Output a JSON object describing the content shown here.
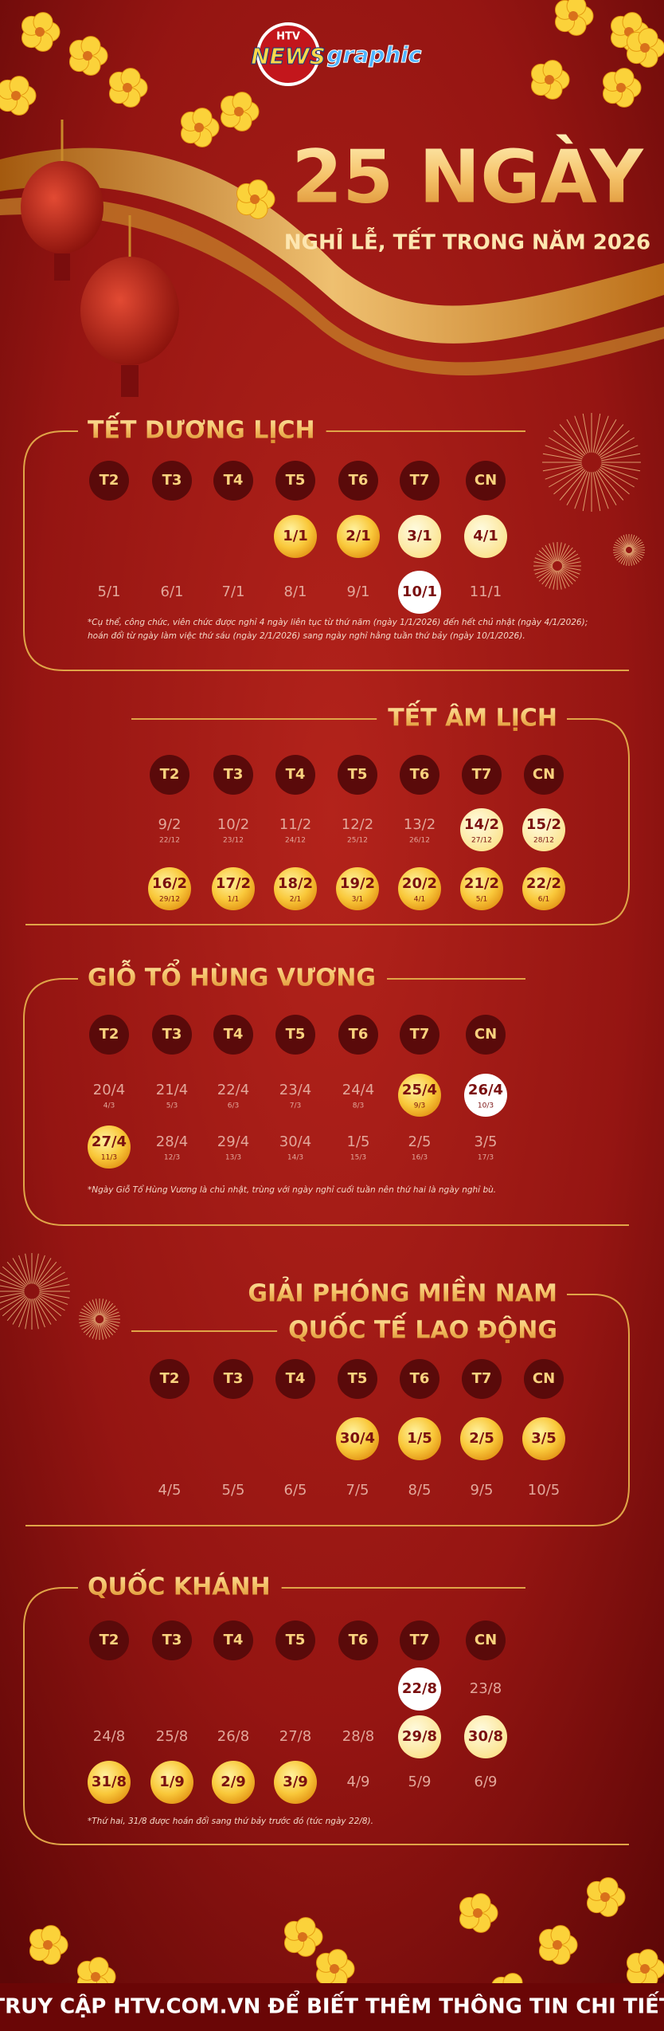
{
  "header": {
    "logo": {
      "brand": "HTV",
      "name": "NEWS",
      "suffix": "graphic"
    },
    "title": "25 NGÀY",
    "subtitle": "NGHỈ LỄ, TẾT TRONG NĂM 2026"
  },
  "sections": [
    {
      "align": "left",
      "title_lines": [
        "TẾT DƯƠNG LỊCH"
      ],
      "weekdays": [
        "T2",
        "T3",
        "T4",
        "T5",
        "T6",
        "T7",
        "CN"
      ],
      "rows": [
        [
          null,
          null,
          null,
          {
            "date": "1/1",
            "style": "gold"
          },
          {
            "date": "2/1",
            "style": "gold"
          },
          {
            "date": "3/1",
            "style": "pale"
          },
          {
            "date": "4/1",
            "style": "pale"
          }
        ],
        [
          {
            "date": "5/1",
            "style": "normal"
          },
          {
            "date": "6/1",
            "style": "normal"
          },
          {
            "date": "7/1",
            "style": "normal"
          },
          {
            "date": "8/1",
            "style": "normal"
          },
          {
            "date": "9/1",
            "style": "normal"
          },
          {
            "date": "10/1",
            "style": "white"
          },
          {
            "date": "11/1",
            "style": "normal"
          }
        ]
      ],
      "note_lines": [
        "*Cụ thể, công chức, viên chức được nghỉ 4 ngày liên tục từ thứ năm (ngày 1/1/2026) đến hết chủ nhật (ngày 4/1/2026);",
        "hoán đổi từ ngày làm việc thứ sáu (ngày 2/1/2026) sang ngày nghỉ hằng tuần thứ bảy (ngày 10/1/2026)."
      ]
    },
    {
      "align": "right",
      "title_lines": [
        "TẾT ÂM LỊCH"
      ],
      "weekdays": [
        "T2",
        "T3",
        "T4",
        "T5",
        "T6",
        "T7",
        "CN"
      ],
      "rows": [
        [
          {
            "date": "9/2",
            "lunar": "22/12",
            "style": "normal"
          },
          {
            "date": "10/2",
            "lunar": "23/12",
            "style": "normal"
          },
          {
            "date": "11/2",
            "lunar": "24/12",
            "style": "normal"
          },
          {
            "date": "12/2",
            "lunar": "25/12",
            "style": "normal"
          },
          {
            "date": "13/2",
            "lunar": "26/12",
            "style": "normal"
          },
          {
            "date": "14/2",
            "lunar": "27/12",
            "style": "pale"
          },
          {
            "date": "15/2",
            "lunar": "28/12",
            "style": "pale"
          }
        ],
        [
          {
            "date": "16/2",
            "lunar": "29/12",
            "style": "gold"
          },
          {
            "date": "17/2",
            "lunar": "1/1",
            "style": "gold"
          },
          {
            "date": "18/2",
            "lunar": "2/1",
            "style": "gold"
          },
          {
            "date": "19/2",
            "lunar": "3/1",
            "style": "gold"
          },
          {
            "date": "20/2",
            "lunar": "4/1",
            "style": "gold"
          },
          {
            "date": "21/2",
            "lunar": "5/1",
            "style": "gold"
          },
          {
            "date": "22/2",
            "lunar": "6/1",
            "style": "gold"
          }
        ]
      ]
    },
    {
      "align": "left",
      "title_lines": [
        "GIỖ TỔ HÙNG VƯƠNG"
      ],
      "weekdays": [
        "T2",
        "T3",
        "T4",
        "T5",
        "T6",
        "T7",
        "CN"
      ],
      "rows": [
        [
          {
            "date": "20/4",
            "lunar": "4/3",
            "style": "normal"
          },
          {
            "date": "21/4",
            "lunar": "5/3",
            "style": "normal"
          },
          {
            "date": "22/4",
            "lunar": "6/3",
            "style": "normal"
          },
          {
            "date": "23/4",
            "lunar": "7/3",
            "style": "normal"
          },
          {
            "date": "24/4",
            "lunar": "8/3",
            "style": "normal"
          },
          {
            "date": "25/4",
            "lunar": "9/3",
            "style": "gold"
          },
          {
            "date": "26/4",
            "lunar": "10/3",
            "style": "white"
          }
        ],
        [
          {
            "date": "27/4",
            "lunar": "11/3",
            "style": "gold"
          },
          {
            "date": "28/4",
            "lunar": "12/3",
            "style": "normal"
          },
          {
            "date": "29/4",
            "lunar": "13/3",
            "style": "normal"
          },
          {
            "date": "30/4",
            "lunar": "14/3",
            "style": "normal"
          },
          {
            "date": "1/5",
            "lunar": "15/3",
            "style": "normal"
          },
          {
            "date": "2/5",
            "lunar": "16/3",
            "style": "normal"
          },
          {
            "date": "3/5",
            "lunar": "17/3",
            "style": "normal"
          }
        ]
      ],
      "note_lines": [
        "*Ngày Giỗ Tổ Hùng Vương là chủ nhật, trùng với ngày nghỉ cuối tuần nên thứ hai là ngày nghỉ bù."
      ]
    },
    {
      "align": "right",
      "title_lines": [
        "GIẢI PHÓNG MIỀN NAM",
        "QUỐC TẾ LAO ĐỘNG"
      ],
      "weekdays": [
        "T2",
        "T3",
        "T4",
        "T5",
        "T6",
        "T7",
        "CN"
      ],
      "rows": [
        [
          null,
          null,
          null,
          {
            "date": "30/4",
            "style": "gold"
          },
          {
            "date": "1/5",
            "style": "gold"
          },
          {
            "date": "2/5",
            "style": "gold"
          },
          {
            "date": "3/5",
            "style": "gold"
          }
        ],
        [
          {
            "date": "4/5",
            "style": "normal"
          },
          {
            "date": "5/5",
            "style": "normal"
          },
          {
            "date": "6/5",
            "style": "normal"
          },
          {
            "date": "7/5",
            "style": "normal"
          },
          {
            "date": "8/5",
            "style": "normal"
          },
          {
            "date": "9/5",
            "style": "normal"
          },
          {
            "date": "10/5",
            "style": "normal"
          }
        ]
      ]
    },
    {
      "align": "left",
      "title_lines": [
        "QUỐC KHÁNH"
      ],
      "weekdays": [
        "T2",
        "T3",
        "T4",
        "T5",
        "T6",
        "T7",
        "CN"
      ],
      "rows": [
        [
          null,
          null,
          null,
          null,
          null,
          {
            "date": "22/8",
            "style": "white"
          },
          {
            "date": "23/8",
            "style": "normal"
          }
        ],
        [
          {
            "date": "24/8",
            "style": "normal"
          },
          {
            "date": "25/8",
            "style": "normal"
          },
          {
            "date": "26/8",
            "style": "normal"
          },
          {
            "date": "27/8",
            "style": "normal"
          },
          {
            "date": "28/8",
            "style": "normal"
          },
          {
            "date": "29/8",
            "style": "pale"
          },
          {
            "date": "30/8",
            "style": "pale"
          }
        ],
        [
          {
            "date": "31/8",
            "style": "gold"
          },
          {
            "date": "1/9",
            "style": "gold"
          },
          {
            "date": "2/9",
            "style": "gold"
          },
          {
            "date": "3/9",
            "style": "gold"
          },
          {
            "date": "4/9",
            "style": "normal"
          },
          {
            "date": "5/9",
            "style": "normal"
          },
          {
            "date": "6/9",
            "style": "normal"
          }
        ]
      ],
      "note_lines": [
        "*Thứ hai, 31/8 được hoán đổi sang thứ bảy trước đó (tức ngày 22/8)."
      ]
    }
  ],
  "footer": "TRUY CẬP HTV.COM.VN ĐỂ BIẾT THÊM THÔNG TIN CHI TIẾT"
}
